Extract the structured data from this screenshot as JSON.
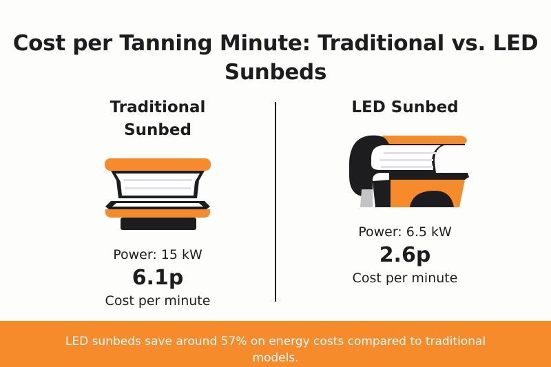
{
  "title": "Cost per Tanning Minute: Traditional vs. LED Sunbeds",
  "colors": {
    "accent": "#f68b2c",
    "dark": "#1d1d1f",
    "background": "#fdfdfb"
  },
  "traditional": {
    "heading": "Traditional Sunbed",
    "icon": "traditional-sunbed-icon",
    "power": "Power: 15 kW",
    "cost": "6.1p",
    "cost_label": "Cost per minute"
  },
  "led": {
    "heading": "LED Sunbed",
    "icon": "led-sunbed-icon",
    "power": "Power: 6.5 kW",
    "cost": "2.6p",
    "cost_label": "Cost per minute"
  },
  "footer": "LED sunbeds save around 57% on energy costs compared to traditional models."
}
